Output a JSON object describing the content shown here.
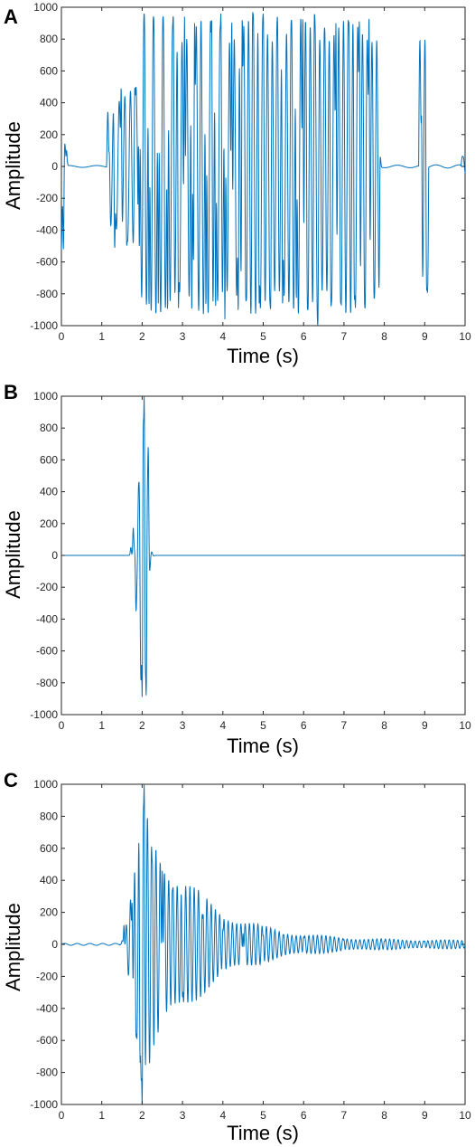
{
  "chart_data": [
    {
      "type": "line",
      "panel_label": "A",
      "xlabel": "Time (s)",
      "ylabel": "Amplitude",
      "xlim": [
        0,
        10
      ],
      "ylim": [
        -1000,
        1000
      ],
      "xticks": [
        "0",
        "1",
        "2",
        "3",
        "4",
        "5",
        "6",
        "7",
        "8",
        "9",
        "10"
      ],
      "yticks": [
        "-1000",
        "-800",
        "-600",
        "-400",
        "-200",
        "0",
        "200",
        "400",
        "600",
        "800",
        "1000"
      ],
      "grid": false,
      "line_color": "#0072BD",
      "signal_description": "bursty pulse train, |amplitude| up to about 1000 (peak samples at x values below)",
      "peaks": {
        "x": [
          0.05,
          0.13,
          1.18,
          1.32,
          1.48,
          1.62,
          1.82,
          1.93,
          2.05,
          2.17,
          2.28,
          2.4,
          2.52,
          2.63,
          2.77,
          2.9,
          3.05,
          3.23,
          3.3,
          3.58,
          3.72,
          3.82,
          3.95,
          4.05,
          4.22,
          4.38,
          4.48,
          4.58,
          4.74,
          4.9,
          5.0,
          5.18,
          5.35,
          5.48,
          5.7,
          5.82,
          5.98,
          6.1,
          6.27,
          6.35,
          6.52,
          6.68,
          6.8,
          6.92,
          7.12,
          7.26,
          7.38,
          7.52,
          7.62,
          7.75,
          7.9,
          8.92,
          9.05,
          9.95
        ],
        "y": [
          -520,
          100,
          90,
          -520,
          500,
          -500,
          500,
          -520,
          960,
          -890,
          940,
          -860,
          940,
          -920,
          950,
          -890,
          940,
          -920,
          900,
          -890,
          930,
          -900,
          960,
          -960,
          930,
          -920,
          940,
          -840,
          970,
          -860,
          960,
          -900,
          940,
          -880,
          920,
          -850,
          950,
          -900,
          960,
          -1000,
          870,
          -880,
          900,
          -860,
          910,
          -840,
          930,
          -890,
          950,
          -830,
          60,
          330,
          -780,
          60
        ]
      }
    },
    {
      "type": "line",
      "panel_label": "B",
      "xlabel": "Time (s)",
      "ylabel": "Amplitude",
      "xlim": [
        0,
        10
      ],
      "ylim": [
        -1000,
        1000
      ],
      "xticks": [
        "0",
        "1",
        "2",
        "3",
        "4",
        "5",
        "6",
        "7",
        "8",
        "9",
        "10"
      ],
      "yticks": [
        "-1000",
        "-800",
        "-600",
        "-400",
        "-200",
        "0",
        "200",
        "400",
        "600",
        "800",
        "1000"
      ],
      "grid": false,
      "line_color": "#0072BD",
      "signal_description": "single short burst centred near t = 2 s, flat elsewhere",
      "peaks": {
        "x": [
          1.72,
          1.78,
          1.85,
          1.92,
          2.0,
          2.05,
          2.1,
          2.15
        ],
        "y": [
          50,
          175,
          -350,
          460,
          -890,
          1000,
          -880,
          680
        ]
      }
    },
    {
      "type": "line",
      "panel_label": "C",
      "xlabel": "Time (s)",
      "ylabel": "Amplitude",
      "xlim": [
        0,
        10
      ],
      "ylim": [
        -1000,
        1000
      ],
      "xticks": [
        "0",
        "1",
        "2",
        "3",
        "4",
        "5",
        "6",
        "7",
        "8",
        "9",
        "10"
      ],
      "yticks": [
        "-1000",
        "-800",
        "-600",
        "-400",
        "-200",
        "0",
        "200",
        "400",
        "600",
        "800",
        "1000"
      ],
      "grid": false,
      "line_color": "#0072BD",
      "signal_description": "burst starting near t = 1.5 s, peak ~1000 at t = 2 s, decaying oscillation to ~10 s",
      "peaks": {
        "x": [
          1.55,
          1.75,
          1.85,
          1.95,
          2.0,
          2.05,
          2.25,
          2.5,
          2.75,
          3.0,
          3.5,
          4.0,
          4.5,
          5.0,
          5.5,
          6.0,
          7.0,
          8.0,
          9.0
        ],
        "y": [
          120,
          260,
          -580,
          -740,
          -1000,
          1000,
          520,
          460,
          340,
          -330,
          160,
          90,
          70,
          55,
          60,
          45,
          30,
          20,
          20
        ]
      }
    }
  ]
}
